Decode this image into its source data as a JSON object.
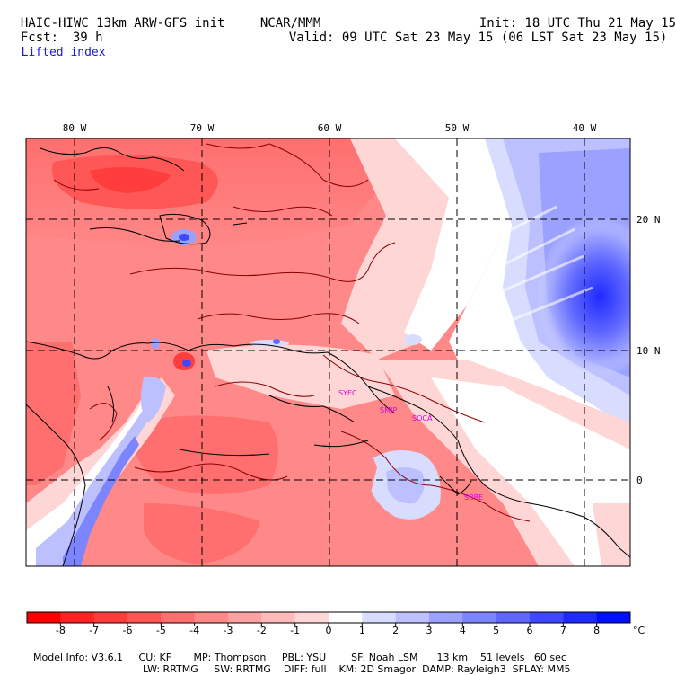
{
  "header": {
    "model_title": "HAIC-HIWC 13km ARW-GFS init",
    "org": "NCAR/MMM",
    "init": "Init: 18 UTC Thu 21 May 15",
    "fcst_label": "Fcst:",
    "fcst_value": "39 h",
    "valid": "Valid: 09 UTC Sat 23 May 15 (06 LST Sat 23 May 15)",
    "field": "Lifted index"
  },
  "map": {
    "lon_labels": [
      "80 W",
      "70 W",
      "60 W",
      "50 W",
      "40 W"
    ],
    "lat_labels": [
      "20 N",
      "10 N",
      "0"
    ],
    "stations": [
      "SYEC",
      "SMJP",
      "SOCA",
      "SBBE"
    ],
    "colors": {
      "station": "#e000e0",
      "coast": "#000000",
      "contour": "#8b0000"
    }
  },
  "colorbar": {
    "ticks": [
      "-8",
      "-7",
      "-6",
      "-5",
      "-4",
      "-3",
      "-2",
      "-1",
      "0",
      "1",
      "2",
      "3",
      "4",
      "5",
      "6",
      "7",
      "8"
    ],
    "unit": "°C",
    "colors": [
      "#ff0000",
      "#ff2323",
      "#ff3d3d",
      "#ff5656",
      "#ff6f6f",
      "#ff8888",
      "#ffa1a1",
      "#ffbaba",
      "#ffd6d6",
      "#ffffff",
      "#d8dcff",
      "#bcc0ff",
      "#9ba1ff",
      "#7d84ff",
      "#5f67ff",
      "#3f48ff",
      "#1f2aff",
      "#0010ff"
    ]
  },
  "footer": {
    "line1": "Model Info: V3.6.1     CU: KF       MP: Thompson     PBL: YSU        SF: Noah LSM      13 km    51 levels   60 sec",
    "line2": "LW: RRTMG     SW: RRTMG    DIFF: full    KM: 2D Smagor  DAMP: Rayleigh3  SFLAY: MM5"
  }
}
